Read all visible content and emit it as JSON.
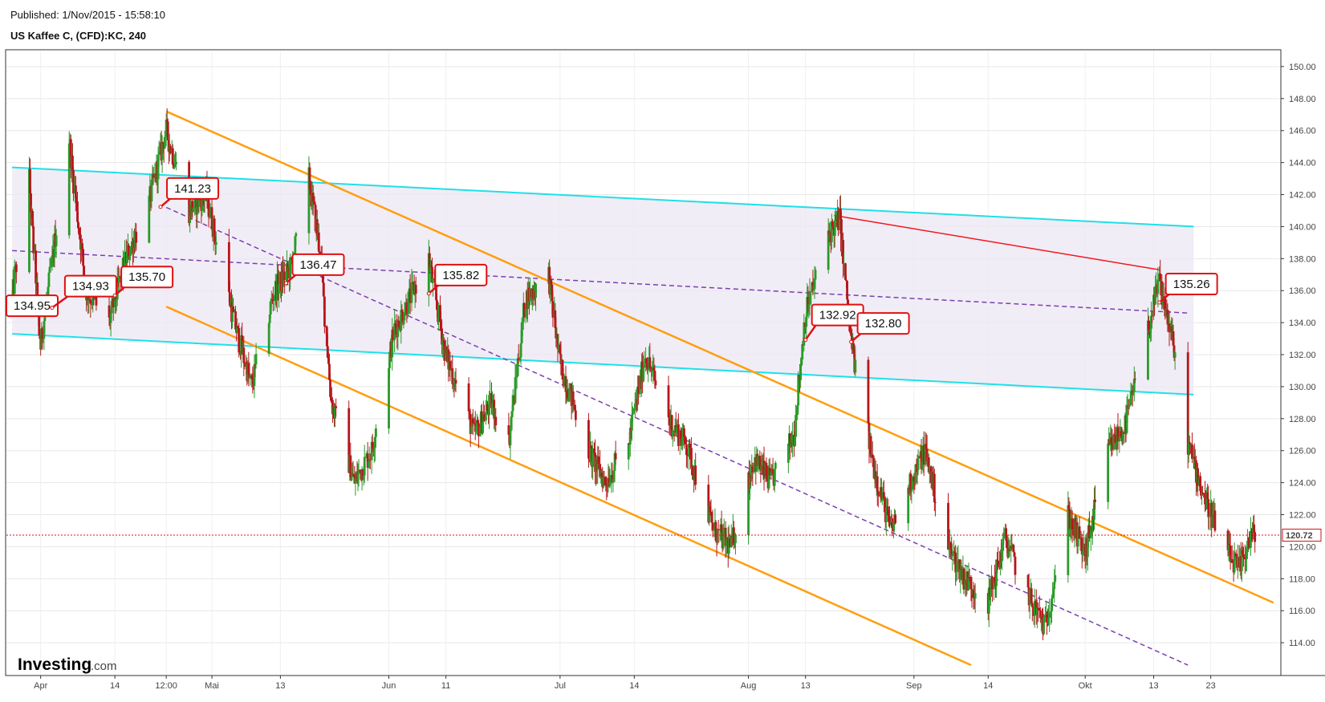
{
  "header": {
    "published": "Published: 1/Nov/2015 - 15:58:10",
    "symbol": "US Kaffee C, (CFD):KC, 240"
  },
  "logo": {
    "brand": "Investing",
    "suffix": ".com"
  },
  "colors": {
    "up_candle": "#2a9a2a",
    "down_candle": "#b5161b",
    "cyan_channel": "#1fe0e8",
    "orange_channel": "#ff9e0f",
    "purple_dashed": "#7b3fb0",
    "red_resistance": "#f0191e",
    "price_line": "#e01010",
    "shade": "#ece7f3"
  },
  "chart_data": {
    "type": "candlestick",
    "title": "US Kaffee C, (CFD):KC, 240",
    "ylim": [
      112,
      151
    ],
    "y_ticks": [
      114,
      116,
      118,
      120,
      122,
      124,
      126,
      128,
      130,
      132,
      134,
      136,
      138,
      140,
      142,
      144,
      146,
      148,
      150
    ],
    "y_tick_labels": [
      "114.00",
      "116.00",
      "118.00",
      "120.00",
      "122.00",
      "124.00",
      "126.00",
      "128.00",
      "130.00",
      "132.00",
      "134.00",
      "136.00",
      "138.00",
      "140.00",
      "142.00",
      "144.00",
      "146.00",
      "148.00",
      "150.00"
    ],
    "x_labels": [
      "Apr",
      "14",
      "12:00",
      "Mai",
      "13",
      "Jun",
      "11",
      "Jul",
      "14",
      "Aug",
      "13",
      "Sep",
      "14",
      "Okt",
      "13",
      "23"
    ],
    "last_price": "120.72",
    "last_price_value": 120.72,
    "price_path": [
      {
        "date": "2015-03-27",
        "price": 135.5
      },
      {
        "date": "2015-03-30",
        "price": 143.0
      },
      {
        "date": "2015-04-01",
        "price": 132.5
      },
      {
        "date": "2015-04-06",
        "price": 145.5
      },
      {
        "date": "2015-04-09",
        "price": 136.0
      },
      {
        "date": "2015-04-13",
        "price": 134.0
      },
      {
        "date": "2015-04-16",
        "price": 138.0
      },
      {
        "date": "2015-04-20",
        "price": 141.5
      },
      {
        "date": "2015-04-23",
        "price": 146.0
      },
      {
        "date": "2015-04-27",
        "price": 141.0
      },
      {
        "date": "2015-04-30",
        "price": 142.0
      },
      {
        "date": "2015-05-05",
        "price": 134.0
      },
      {
        "date": "2015-05-08",
        "price": 130.0
      },
      {
        "date": "2015-05-12",
        "price": 136.0
      },
      {
        "date": "2015-05-15",
        "price": 137.5
      },
      {
        "date": "2015-05-18",
        "price": 143.0
      },
      {
        "date": "2015-05-20",
        "price": 138.5
      },
      {
        "date": "2015-05-22",
        "price": 129.0
      },
      {
        "date": "2015-05-26",
        "price": 124.0
      },
      {
        "date": "2015-05-29",
        "price": 126.0
      },
      {
        "date": "2015-06-02",
        "price": 133.5
      },
      {
        "date": "2015-06-08",
        "price": 138.0
      },
      {
        "date": "2015-06-11",
        "price": 132.0
      },
      {
        "date": "2015-06-16",
        "price": 127.0
      },
      {
        "date": "2015-06-19",
        "price": 129.0
      },
      {
        "date": "2015-06-22",
        "price": 126.5
      },
      {
        "date": "2015-06-25",
        "price": 135.5
      },
      {
        "date": "2015-06-29",
        "price": 137.0
      },
      {
        "date": "2015-07-01",
        "price": 131.5
      },
      {
        "date": "2015-07-06",
        "price": 126.0
      },
      {
        "date": "2015-07-09",
        "price": 124.0
      },
      {
        "date": "2015-07-13",
        "price": 126.5
      },
      {
        "date": "2015-07-16",
        "price": 132.0
      },
      {
        "date": "2015-07-20",
        "price": 128.0
      },
      {
        "date": "2015-07-23",
        "price": 126.5
      },
      {
        "date": "2015-07-28",
        "price": 121.0
      },
      {
        "date": "2015-07-31",
        "price": 120.0
      },
      {
        "date": "2015-08-04",
        "price": 125.5
      },
      {
        "date": "2015-08-07",
        "price": 124.0
      },
      {
        "date": "2015-08-11",
        "price": 127.0
      },
      {
        "date": "2015-08-13",
        "price": 134.5
      },
      {
        "date": "2015-08-17",
        "price": 139.5
      },
      {
        "date": "2015-08-19",
        "price": 140.5
      },
      {
        "date": "2015-08-21",
        "price": 132.8
      },
      {
        "date": "2015-08-25",
        "price": 125.0
      },
      {
        "date": "2015-08-28",
        "price": 121.0
      },
      {
        "date": "2015-09-01",
        "price": 124.5
      },
      {
        "date": "2015-09-03",
        "price": 126.0
      },
      {
        "date": "2015-09-07",
        "price": 120.0
      },
      {
        "date": "2015-09-10",
        "price": 118.0
      },
      {
        "date": "2015-09-14",
        "price": 116.5
      },
      {
        "date": "2015-09-17",
        "price": 120.5
      },
      {
        "date": "2015-09-21",
        "price": 117.0
      },
      {
        "date": "2015-09-24",
        "price": 115.0
      },
      {
        "date": "2015-09-28",
        "price": 122.0
      },
      {
        "date": "2015-10-01",
        "price": 119.5
      },
      {
        "date": "2015-10-05",
        "price": 126.0
      },
      {
        "date": "2015-10-08",
        "price": 127.5
      },
      {
        "date": "2015-10-12",
        "price": 133.5
      },
      {
        "date": "2015-10-14",
        "price": 136.5
      },
      {
        "date": "2015-10-16",
        "price": 133.5
      },
      {
        "date": "2015-10-19",
        "price": 126.5
      },
      {
        "date": "2015-10-22",
        "price": 123.0
      },
      {
        "date": "2015-10-26",
        "price": 119.5
      },
      {
        "date": "2015-10-28",
        "price": 118.5
      },
      {
        "date": "2015-10-30",
        "price": 120.7
      }
    ],
    "trendlines": [
      {
        "name": "cyan-upper",
        "from": {
          "date": "2015-03-27",
          "price": 143.7
        },
        "to": {
          "date": "2015-10-20",
          "price": 140.0
        }
      },
      {
        "name": "cyan-lower",
        "from": {
          "date": "2015-03-27",
          "price": 133.3
        },
        "to": {
          "date": "2015-10-20",
          "price": 129.5
        }
      },
      {
        "name": "purple-mid",
        "from": {
          "date": "2015-03-27",
          "price": 138.5
        },
        "to": {
          "date": "2015-10-19",
          "price": 134.6
        }
      },
      {
        "name": "purple-lower",
        "from": {
          "date": "2015-04-23",
          "price": 141.2
        },
        "to": {
          "date": "2015-10-19",
          "price": 112.6
        }
      },
      {
        "name": "orange-upper",
        "from": {
          "date": "2015-04-23",
          "price": 147.2
        },
        "to": {
          "date": "2015-11-03",
          "price": 116.5
        }
      },
      {
        "name": "orange-lower",
        "from": {
          "date": "2015-04-23",
          "price": 135.0
        },
        "to": {
          "date": "2015-09-11",
          "price": 112.6
        }
      },
      {
        "name": "red-resistance",
        "from": {
          "date": "2015-08-18",
          "price": 140.7
        },
        "to": {
          "date": "2015-10-14",
          "price": 137.3
        }
      }
    ],
    "annotations": [
      {
        "label": "134.95",
        "date": "2015-03-27",
        "price": 134.95
      },
      {
        "label": "134.93",
        "date": "2015-04-03",
        "price": 134.93
      },
      {
        "label": "135.70",
        "date": "2015-04-14",
        "price": 135.7
      },
      {
        "label": "141.23",
        "date": "2015-04-22",
        "price": 141.23
      },
      {
        "label": "136.47",
        "date": "2015-05-14",
        "price": 136.47
      },
      {
        "label": "135.82",
        "date": "2015-06-08",
        "price": 135.82
      },
      {
        "label": "132.92",
        "date": "2015-08-13",
        "price": 132.92
      },
      {
        "label": "132.80",
        "date": "2015-08-21",
        "price": 132.8
      },
      {
        "label": "135.26",
        "date": "2015-10-14",
        "price": 135.26
      }
    ]
  }
}
